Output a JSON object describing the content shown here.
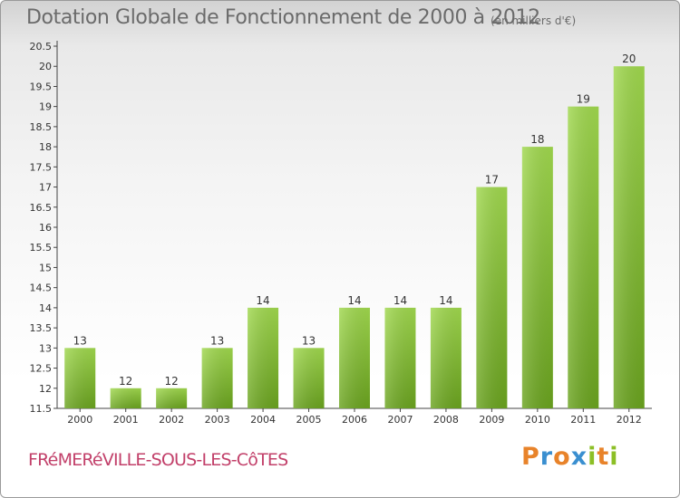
{
  "chart_data": {
    "type": "bar",
    "title": "Dotation Globale de Fonctionnement de 2000 à 2012",
    "subtitle": "(en milliers d'€)",
    "categories": [
      "2000",
      "2001",
      "2002",
      "2003",
      "2004",
      "2005",
      "2006",
      "2007",
      "2008",
      "2009",
      "2010",
      "2011",
      "2012"
    ],
    "values": [
      13,
      12,
      12,
      13,
      14,
      13,
      14,
      14,
      14,
      17,
      18,
      19,
      20
    ],
    "yticks": [
      "11.5",
      "12",
      "12.5",
      "13",
      "13.5",
      "14",
      "14.5",
      "15",
      "15.5",
      "16",
      "16.5",
      "17",
      "17.5",
      "18",
      "18.5",
      "19",
      "19.5",
      "20",
      "20.5"
    ],
    "ylim": [
      11.5,
      20.5
    ],
    "grid": false,
    "bar_color": "#7ab82e",
    "bar_color_top": "#a0d84e"
  },
  "footer": {
    "commune": "FRéMERéVILLE-SOUS-LES-CôTES",
    "logo_letters": [
      "P",
      "r",
      "o",
      "x",
      "i",
      "t",
      "i"
    ],
    "logo_colors": [
      "#e8832a",
      "#3a8fd0",
      "#e8832a",
      "#3a8fd0",
      "#8cbf26",
      "#e8832a",
      "#8cbf26"
    ]
  }
}
